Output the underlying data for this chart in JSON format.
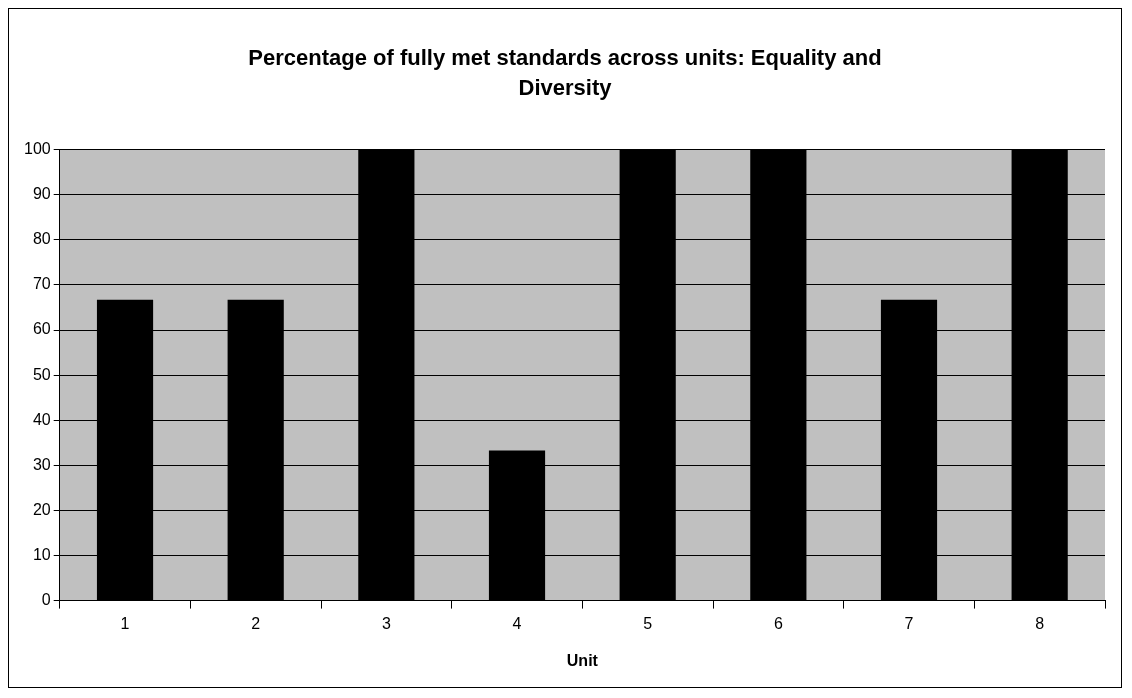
{
  "chart_data": {
    "type": "bar",
    "title": "Percentage of fully met standards across units: Equality and Diversity",
    "xlabel": "Unit",
    "categories": [
      "1",
      "2",
      "3",
      "4",
      "5",
      "6",
      "7",
      "8"
    ],
    "values": [
      66.7,
      66.7,
      100,
      33.3,
      100,
      100,
      66.7,
      100
    ],
    "color": "#000000",
    "ylim": [
      0,
      100
    ],
    "yticks": [
      0,
      10,
      20,
      30,
      40,
      50,
      60,
      70,
      80,
      90,
      100
    ],
    "grid": "y",
    "legend": false
  }
}
